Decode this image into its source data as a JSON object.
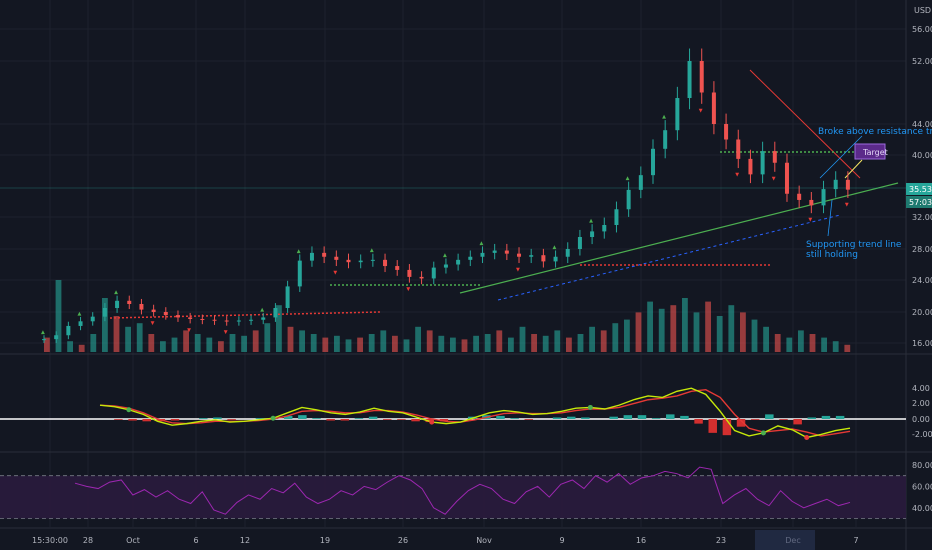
{
  "chart_data": {
    "type": "candlestick",
    "currency": "USD",
    "price_ticks": [
      "56.00",
      "52.00",
      "44.00",
      "40.00",
      "32.00",
      "28.00",
      "24.00",
      "20.00",
      "16.00"
    ],
    "current_price": "35.53",
    "countdown": "57:03",
    "x_ticks": [
      "15:30:00",
      "28",
      "Oct",
      "6",
      "12",
      "19",
      "26",
      "Nov",
      "9",
      "16",
      "23",
      "Dec",
      "7"
    ],
    "macd_ticks": [
      "4.00",
      "2.00",
      "0.00",
      "-2.00"
    ],
    "rsi_ticks": [
      "80.00",
      "60.00",
      "40.00"
    ],
    "annotations": {
      "resistance": "Broke above resistance trend",
      "support_line1": "Supporting trend line",
      "support_line2": "still holding",
      "target": "Target"
    },
    "price_series": [
      [
        0,
        16.5
      ],
      [
        6,
        17.0
      ],
      [
        12,
        18.2
      ],
      [
        18,
        18.8
      ],
      [
        24,
        19.4
      ],
      [
        30,
        20.5
      ],
      [
        36,
        21.4
      ],
      [
        42,
        21.0
      ],
      [
        48,
        20.3
      ],
      [
        54,
        20.0
      ],
      [
        60,
        19.6
      ],
      [
        66,
        19.3
      ],
      [
        72,
        19.1
      ],
      [
        78,
        19.0
      ],
      [
        84,
        18.9
      ],
      [
        90,
        18.8
      ],
      [
        96,
        18.9
      ],
      [
        102,
        19.0
      ],
      [
        108,
        19.3
      ],
      [
        114,
        20.5
      ],
      [
        120,
        23.2
      ],
      [
        126,
        26.5
      ],
      [
        132,
        27.5
      ],
      [
        138,
        27.0
      ],
      [
        144,
        26.6
      ],
      [
        150,
        26.3
      ],
      [
        156,
        26.5
      ],
      [
        162,
        26.6
      ],
      [
        168,
        25.8
      ],
      [
        174,
        25.3
      ],
      [
        180,
        24.4
      ],
      [
        186,
        24.2
      ],
      [
        192,
        25.6
      ],
      [
        198,
        26.0
      ],
      [
        204,
        26.6
      ],
      [
        210,
        27.0
      ],
      [
        216,
        27.5
      ],
      [
        222,
        27.8
      ],
      [
        228,
        27.4
      ],
      [
        234,
        27.0
      ],
      [
        240,
        27.2
      ],
      [
        246,
        26.4
      ],
      [
        252,
        27.0
      ],
      [
        258,
        28.0
      ],
      [
        264,
        29.5
      ],
      [
        270,
        30.2
      ],
      [
        276,
        31.0
      ],
      [
        282,
        33.0
      ],
      [
        288,
        35.5
      ],
      [
        294,
        37.4
      ],
      [
        300,
        40.8
      ],
      [
        306,
        43.2
      ],
      [
        312,
        47.3
      ],
      [
        318,
        52.0
      ],
      [
        324,
        48.0
      ],
      [
        330,
        44.0
      ],
      [
        336,
        42.0
      ],
      [
        342,
        39.5
      ],
      [
        348,
        37.5
      ],
      [
        354,
        40.5
      ],
      [
        360,
        39.0
      ],
      [
        366,
        35.0
      ],
      [
        372,
        34.2
      ],
      [
        378,
        33.5
      ],
      [
        384,
        35.6
      ],
      [
        390,
        36.8
      ],
      [
        396,
        35.53
      ]
    ],
    "volume_series": [
      8,
      40,
      6,
      4,
      10,
      30,
      20,
      14,
      16,
      10,
      6,
      8,
      12,
      10,
      8,
      6,
      10,
      9,
      12,
      16,
      26,
      14,
      12,
      10,
      8,
      9,
      7,
      8,
      10,
      12,
      9,
      7,
      14,
      12,
      9,
      8,
      7,
      9,
      10,
      12,
      8,
      14,
      10,
      9,
      12,
      8,
      10,
      14,
      12,
      16,
      18,
      22,
      28,
      24,
      26,
      30,
      22,
      28,
      20,
      26,
      22,
      18,
      14,
      10,
      8,
      12,
      10,
      8,
      6,
      4
    ],
    "macd_series": [
      1.8,
      1.6,
      1.2,
      0.6,
      -0.3,
      -0.8,
      -0.6,
      -0.3,
      -0.1,
      -0.4,
      -0.3,
      -0.1,
      0.1,
      0.8,
      1.5,
      1.2,
      0.8,
      0.6,
      0.9,
      1.4,
      1.0,
      0.8,
      0.2,
      -0.4,
      -0.6,
      -0.4,
      0.2,
      0.8,
      1.1,
      0.9,
      0.6,
      0.7,
      1.0,
      1.4,
      1.5,
      1.3,
      1.8,
      2.5,
      3.0,
      2.8,
      3.6,
      4.0,
      3.2,
      1.0,
      -1.5,
      -2.2,
      -1.8,
      -0.9,
      -1.4,
      -2.4,
      -2.0,
      -1.5,
      -1.2
    ],
    "macd_signal_series": [
      1.8,
      1.7,
      1.4,
      0.8,
      0.0,
      -0.5,
      -0.6,
      -0.5,
      -0.3,
      -0.3,
      -0.3,
      -0.2,
      0.0,
      0.4,
      1.0,
      1.1,
      1.0,
      0.8,
      0.8,
      1.1,
      1.1,
      0.9,
      0.5,
      0.0,
      -0.3,
      -0.4,
      -0.1,
      0.3,
      0.7,
      0.8,
      0.7,
      0.7,
      0.8,
      1.1,
      1.3,
      1.3,
      1.5,
      2.0,
      2.5,
      2.7,
      3.0,
      3.6,
      3.8,
      2.8,
      0.6,
      -1.2,
      -1.7,
      -1.5,
      -1.3,
      -1.7,
      -2.2,
      -1.9,
      -1.6
    ],
    "macd_hist": [
      0,
      -0.1,
      -0.2,
      -0.3,
      -0.3,
      -0.2,
      0,
      0.1,
      0.2,
      -0.1,
      0,
      0.1,
      0.1,
      0.4,
      0.5,
      0.1,
      -0.2,
      -0.2,
      0.1,
      0.3,
      -0.1,
      -0.1,
      -0.3,
      -0.4,
      -0.3,
      0,
      0.3,
      0.5,
      0.4,
      0.1,
      -0.1,
      0,
      0.2,
      0.3,
      0.2,
      0,
      0.3,
      0.5,
      0.5,
      0.1,
      0.6,
      0.4,
      -0.6,
      -1.8,
      -2.1,
      -1.0,
      -0.1,
      0.6,
      -0.1,
      -0.7,
      0.2,
      0.4,
      0.4
    ],
    "rsi_series": [
      63,
      60,
      58,
      64,
      66,
      52,
      57,
      50,
      56,
      48,
      44,
      55,
      38,
      34,
      45,
      52,
      48,
      58,
      54,
      63,
      50,
      44,
      48,
      56,
      52,
      60,
      57,
      64,
      70,
      66,
      58,
      40,
      34,
      46,
      56,
      62,
      58,
      48,
      44,
      55,
      60,
      50,
      62,
      66,
      58,
      70,
      64,
      72,
      62,
      68,
      70,
      74,
      72,
      68,
      78,
      76,
      44,
      52,
      58,
      48,
      42,
      56,
      46,
      40,
      44,
      48,
      42,
      45
    ]
  }
}
